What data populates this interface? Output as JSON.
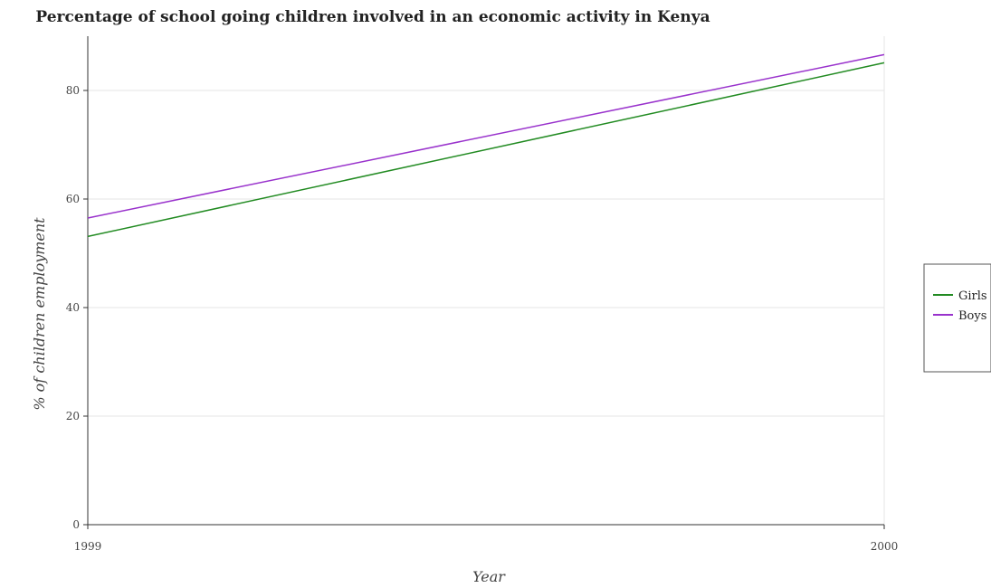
{
  "chart_data": {
    "type": "line",
    "title": "Percentage of school going children involved in an economic activity in Kenya",
    "xlabel": "Year",
    "ylabel": "% of children employment",
    "x": [
      "1999",
      "2000"
    ],
    "ylim": [
      0,
      90
    ],
    "yticks": [
      0,
      20,
      40,
      60,
      80
    ],
    "grid": true,
    "legend_position": "right",
    "series": [
      {
        "name": "Girls",
        "color": "#228b22",
        "values": [
          53.1,
          85.1
        ]
      },
      {
        "name": "Boys",
        "color": "#9932cc",
        "values": [
          56.5,
          86.6
        ]
      }
    ]
  }
}
